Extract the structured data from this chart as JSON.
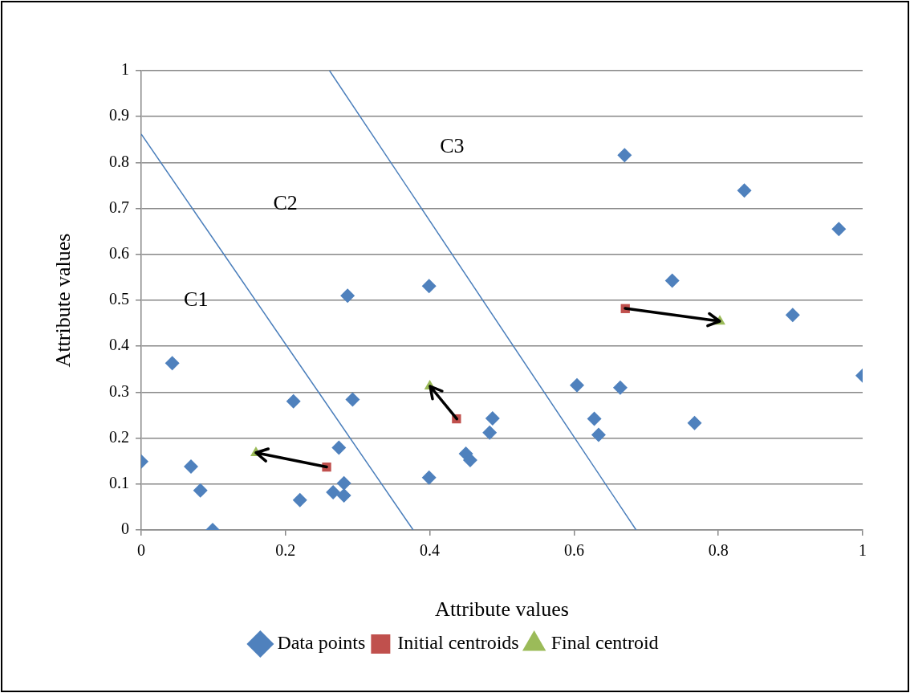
{
  "chart_data": {
    "type": "scatter",
    "xlabel": "Attribute values",
    "ylabel": "Attribute values",
    "xlim": [
      0,
      1
    ],
    "ylim": [
      0,
      1
    ],
    "xticks": [
      0,
      0.2,
      0.4,
      0.6,
      0.8,
      1
    ],
    "yticks": [
      0,
      0.1,
      0.2,
      0.3,
      0.4,
      0.5,
      0.6,
      0.7,
      0.8,
      0.9,
      1
    ],
    "grid": "y",
    "legend": "bottom",
    "annotations": [
      "C1",
      "C2",
      "C3"
    ],
    "series": [
      {
        "name": "Data points",
        "color": "#4f81bd",
        "marker": "diamond",
        "x": [
          0,
          0.043,
          0.069,
          0.082,
          0.099,
          0.22,
          0.211,
          0.293,
          0.274,
          0.281,
          0.266,
          0.281,
          0.286,
          0.399,
          0.399,
          0.45,
          0.456,
          0.487,
          0.483,
          0.604,
          0.67,
          0.836,
          0.967,
          0.736,
          0.903,
          1.0,
          0.664,
          0.628,
          0.634,
          0.767
        ],
        "values": [
          0.149,
          0.363,
          0.138,
          0.086,
          0,
          0.065,
          0.28,
          0.284,
          0.179,
          0.102,
          0.082,
          0.075,
          0.51,
          0.531,
          0.114,
          0.166,
          0.152,
          0.243,
          0.212,
          0.315,
          0.816,
          0.739,
          0.655,
          0.543,
          0.468,
          0.336,
          0.31,
          0.242,
          0.207,
          0.233
        ]
      },
      {
        "name": "Initial centroids",
        "color": "#c0504d",
        "marker": "square",
        "x": [
          0.257,
          0.437,
          0.671
        ],
        "values": [
          0.137,
          0.242,
          0.482
        ]
      },
      {
        "name": "Final centroid",
        "color": "#9bbb59",
        "marker": "triangle",
        "x": [
          0.159,
          0.4,
          0.802
        ],
        "values": [
          0.168,
          0.313,
          0.454
        ]
      },
      {
        "type": "line",
        "color": "#4a7ebb",
        "marker": "none",
        "line_style": "solid",
        "x": [
          0,
          0.377
        ],
        "values": [
          0.862,
          0
        ]
      },
      {
        "type": "line",
        "color": "#4a7ebb",
        "marker": "none",
        "line_style": "solid",
        "x": [
          0.261,
          0.686
        ],
        "values": [
          1,
          0
        ]
      }
    ]
  }
}
